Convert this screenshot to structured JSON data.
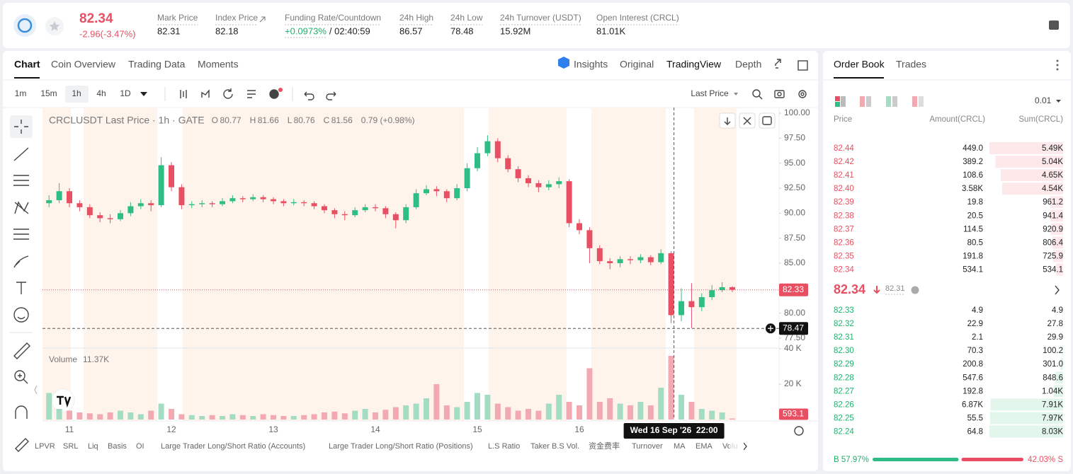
{
  "header": {
    "price": "82.34",
    "change": "-2.96(-3.47%)",
    "stats": [
      {
        "label": "Mark Price",
        "value": "82.31"
      },
      {
        "label": "Index Price",
        "value": "82.18"
      },
      {
        "label": "Funding Rate/Countdown",
        "value": "+0.0973%",
        "countdown": "/ 02:40:59"
      },
      {
        "label": "24h High",
        "value": "86.57"
      },
      {
        "label": "24h Low",
        "value": "78.48"
      },
      {
        "label": "24h Turnover (USDT)",
        "value": "15.92M"
      },
      {
        "label": "Open Interest (CRCL)",
        "value": "81.01K"
      }
    ]
  },
  "chart_tabs": [
    "Chart",
    "Coin Overview",
    "Trading Data",
    "Moments"
  ],
  "view_tabs": [
    "Insights",
    "Original",
    "TradingView",
    "Depth"
  ],
  "intervals": [
    "1m",
    "15m",
    "1h",
    "4h",
    "1D"
  ],
  "price_source": "Last Price",
  "indicators": [
    "LPVR",
    "SRL",
    "Liq",
    "Basis",
    "OI",
    "Large Trader Long/Short Ratio (Accounts)",
    "Large Trader Long/Short Ratio (Positions)",
    "L.S Ratio",
    "Taker B.S Vol.",
    "资金费率",
    "Turnover",
    "MA",
    "EMA",
    "Volu"
  ],
  "chart_data": {
    "type": "candlestick",
    "legend": {
      "symbol": "CRCLUSDT Last Price · 1h · GATE",
      "ohlc": [
        {
          "key": "O",
          "value": "80.77"
        },
        {
          "key": "H",
          "value": "81.66"
        },
        {
          "key": "L",
          "value": "80.76"
        },
        {
          "key": "C",
          "value": "81.56"
        }
      ],
      "change": "0.79 (+0.98%)"
    },
    "categories": [
      null,
      null,
      "11",
      null,
      null,
      null,
      null,
      null,
      null,
      null,
      null,
      null,
      "12",
      null,
      null,
      null,
      null,
      null,
      null,
      null,
      null,
      null,
      "13",
      null,
      null,
      null,
      null,
      null,
      null,
      null,
      null,
      null,
      "14",
      null,
      null,
      null,
      null,
      null,
      null,
      null,
      null,
      null,
      "15",
      null,
      null,
      null,
      null,
      null,
      null,
      null,
      null,
      null,
      "16",
      null,
      null,
      null,
      null,
      null,
      null,
      null,
      null,
      null,
      null,
      null,
      null,
      null,
      null,
      null
    ],
    "open": [
      91.0,
      91.3,
      92.2,
      91.0,
      90.6,
      89.8,
      89.5,
      89.4,
      90.0,
      90.7,
      91.0,
      90.8,
      94.8,
      92.6,
      90.8,
      90.9,
      91.0,
      90.9,
      91.2,
      91.5,
      91.4,
      91.6,
      91.4,
      91.2,
      91.0,
      91.1,
      91.0,
      90.7,
      90.3,
      89.9,
      89.8,
      90.3,
      90.6,
      90.5,
      89.9,
      89.3,
      90.6,
      92.0,
      92.4,
      92.2,
      91.5,
      92.5,
      94.5,
      96.0,
      97.2,
      95.5,
      94.4,
      93.5,
      93.0,
      92.6,
      92.9,
      93.2,
      89.0,
      88.3,
      86.5,
      85.2,
      85.0,
      85.4,
      85.3,
      85.6,
      85.1,
      86.0,
      79.8,
      81.2,
      80.6,
      81.6,
      82.3,
      82.6
    ],
    "high": [
      91.8,
      93.0,
      92.5,
      91.3,
      90.9,
      90.1,
      89.9,
      90.3,
      91.1,
      91.4,
      91.3,
      95.6,
      95.1,
      92.9,
      91.2,
      91.3,
      91.2,
      91.5,
      91.8,
      91.7,
      91.9,
      91.8,
      91.6,
      91.4,
      91.4,
      91.3,
      91.2,
      90.9,
      90.5,
      90.2,
      90.6,
      90.9,
      90.9,
      90.7,
      90.1,
      90.9,
      92.4,
      92.8,
      92.7,
      92.4,
      92.9,
      95.0,
      96.6,
      97.8,
      97.5,
      95.8,
      94.7,
      93.8,
      93.3,
      93.3,
      93.6,
      93.4,
      89.4,
      88.6,
      86.8,
      85.5,
      85.7,
      85.7,
      85.9,
      85.8,
      86.4,
      86.2,
      82.5,
      83.0,
      82.0,
      82.8,
      83.1,
      82.7
    ],
    "low": [
      90.6,
      91.0,
      90.6,
      90.2,
      89.5,
      89.1,
      89.0,
      89.2,
      89.7,
      90.4,
      90.2,
      90.6,
      92.2,
      90.4,
      90.5,
      90.6,
      90.6,
      90.7,
      91.0,
      91.1,
      91.2,
      91.1,
      90.9,
      90.7,
      90.8,
      90.7,
      90.4,
      90.0,
      89.5,
      89.3,
      89.6,
      90.1,
      90.2,
      89.5,
      88.5,
      89.0,
      90.4,
      91.8,
      91.7,
      91.1,
      91.3,
      92.2,
      94.2,
      95.7,
      95.1,
      94.1,
      93.1,
      92.6,
      92.1,
      92.3,
      92.5,
      88.6,
      87.9,
      85.0,
      84.9,
      84.4,
      84.6,
      84.9,
      85.0,
      84.8,
      84.9,
      79.0,
      79.2,
      78.5,
      80.2,
      81.3,
      82.1,
      82.1
    ],
    "close": [
      91.3,
      92.2,
      91.0,
      90.6,
      89.8,
      89.5,
      89.4,
      90.0,
      90.7,
      91.0,
      90.8,
      94.8,
      92.6,
      90.8,
      90.9,
      91.0,
      90.9,
      91.2,
      91.5,
      91.4,
      91.6,
      91.4,
      91.2,
      91.0,
      91.1,
      91.0,
      90.7,
      90.3,
      89.9,
      89.8,
      90.3,
      90.6,
      90.5,
      89.9,
      89.3,
      90.6,
      92.0,
      92.4,
      92.2,
      91.5,
      92.5,
      94.5,
      96.0,
      97.2,
      95.5,
      94.4,
      93.5,
      93.0,
      92.6,
      92.9,
      93.2,
      89.0,
      88.3,
      86.5,
      85.2,
      85.0,
      85.4,
      85.3,
      85.6,
      85.1,
      86.0,
      79.8,
      81.2,
      80.6,
      81.6,
      82.3,
      82.6,
      82.34
    ],
    "ylim": [
      76.65,
      100.57
    ],
    "yticks": [
      {
        "value": 77.5,
        "label": "77.50"
      },
      {
        "value": 80,
        "label": "80.00"
      },
      {
        "value": 82.5,
        "label": "82.50"
      },
      {
        "value": 85,
        "label": "85.00"
      },
      {
        "value": 87.5,
        "label": "87.50"
      },
      {
        "value": 90,
        "label": "90.00"
      },
      {
        "value": 92.5,
        "label": "92.50"
      },
      {
        "value": 95,
        "label": "95.00"
      },
      {
        "value": 97.5,
        "label": "97.50"
      },
      {
        "value": 100,
        "label": "100.00"
      }
    ],
    "grid": false,
    "up_color": "#2ebd85",
    "down_color": "#e84f62",
    "last_price": {
      "value": 82.33,
      "label": "82.33"
    },
    "crosshair": {
      "price": 78.47,
      "time_label": "Wed 16 Sep '26  22:00"
    },
    "volume": {
      "name": "Volume",
      "current": "11.37K",
      "values": [
        15000,
        6000,
        5000,
        4000,
        3500,
        3000,
        4000,
        5000,
        4000,
        3000,
        5000,
        9000,
        6000,
        3000,
        2500,
        2000,
        2500,
        2000,
        3000,
        2500,
        2000,
        3000,
        2500,
        2000,
        2000,
        2500,
        3000,
        4000,
        4500,
        3500,
        5000,
        6000,
        4000,
        5500,
        7000,
        8000,
        9000,
        12000,
        20000,
        8000,
        7000,
        10000,
        15000,
        14000,
        9000,
        7000,
        5000,
        6000,
        5000,
        9000,
        14000,
        10000,
        8000,
        29000,
        10000,
        12000,
        9000,
        8000,
        10000,
        8000,
        18000,
        36000,
        14000,
        10000,
        6000,
        5000,
        4000,
        593.1
      ],
      "ylim": [
        0,
        40000
      ],
      "yticks": [
        {
          "value": 20000,
          "label": "20 K"
        },
        {
          "value": 40000,
          "label": "40 K"
        }
      ],
      "up_color": "#a3dcc3",
      "down_color": "#f2a9b2"
    }
  },
  "order_book": {
    "tabs": [
      "Order Book",
      "Trades"
    ],
    "precision": "0.01",
    "columns": [
      "Price",
      "Amount(CRCL)",
      "Sum(CRCL)"
    ],
    "asks": [
      {
        "price": "82.44",
        "amount": "449.0",
        "sum": {
          "value": 5490,
          "label": "5.49K"
        }
      },
      {
        "price": "82.42",
        "amount": "389.2",
        "sum": {
          "value": 5040,
          "label": "5.04K"
        }
      },
      {
        "price": "82.41",
        "amount": "108.6",
        "sum": {
          "value": 4650,
          "label": "4.65K"
        }
      },
      {
        "price": "82.40",
        "amount": "3.58K",
        "sum": {
          "value": 4540,
          "label": "4.54K"
        }
      },
      {
        "price": "82.39",
        "amount": "19.8",
        "sum": 961.2
      },
      {
        "price": "82.38",
        "amount": "20.5",
        "sum": 941.4
      },
      {
        "price": "82.37",
        "amount": "114.5",
        "sum": 920.9
      },
      {
        "price": "82.36",
        "amount": "80.5",
        "sum": 806.4
      },
      {
        "price": "82.35",
        "amount": "191.8",
        "sum": 725.9
      },
      {
        "price": "82.34",
        "amount": "534.1",
        "sum": 534.1
      }
    ],
    "mid_price": "82.34",
    "mid_mark": "82.31",
    "bids": [
      {
        "price": "82.33",
        "amount": "4.9",
        "sum": 4.9
      },
      {
        "price": "82.32",
        "amount": "22.9",
        "sum": 27.8
      },
      {
        "price": "82.31",
        "amount": "2.1",
        "sum": 29.9
      },
      {
        "price": "82.30",
        "amount": "70.3",
        "sum": 100.2
      },
      {
        "price": "82.29",
        "amount": "200.8",
        "sum": {
          "value": 301.0,
          "label": "301.0"
        }
      },
      {
        "price": "82.28",
        "amount": "547.6",
        "sum": 848.6
      },
      {
        "price": "82.27",
        "amount": "192.8",
        "sum": {
          "value": 1040,
          "label": "1.04K"
        }
      },
      {
        "price": "82.26",
        "amount": "6.87K",
        "sum": {
          "value": 7910,
          "label": "7.91K"
        }
      },
      {
        "price": "82.25",
        "amount": "55.5",
        "sum": {
          "value": 7970,
          "label": "7.97K"
        }
      },
      {
        "price": "82.24",
        "amount": "64.8",
        "sum": {
          "value": 8030,
          "label": "8.03K"
        }
      }
    ],
    "buy_ratio": {
      "value": 57.97,
      "label": "B 57.97%"
    },
    "sell_ratio": {
      "value": 42.03,
      "label": "42.03% S"
    }
  }
}
